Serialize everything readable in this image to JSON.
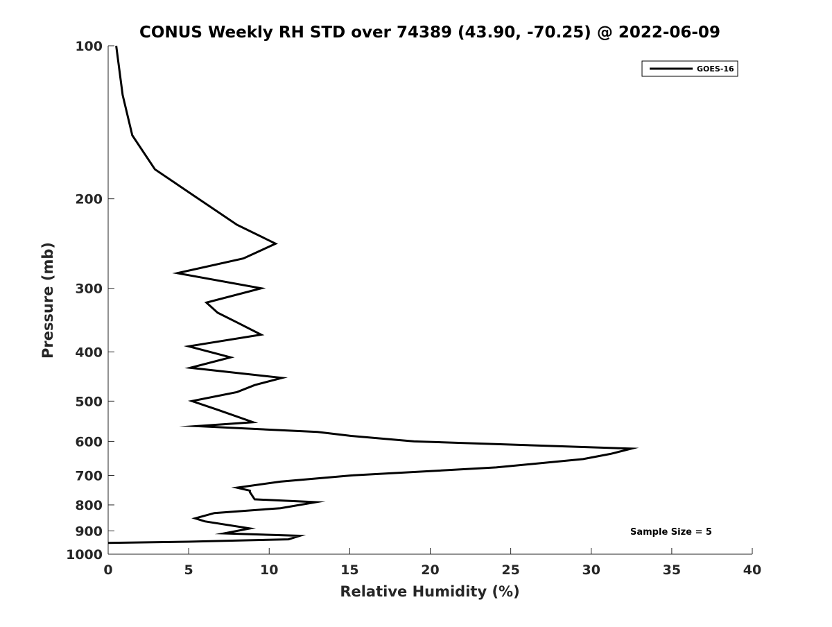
{
  "chart_data": {
    "type": "line",
    "title": "CONUS Weekly RH STD over 74389 (43.90, -70.25) @ 2022-06-09",
    "xlabel": "Relative Humidity (%)",
    "ylabel": "Pressure (mb)",
    "xlim": [
      0,
      40
    ],
    "ylim": [
      100,
      1000
    ],
    "y_scale": "log",
    "y_reversed": true,
    "x_ticks": [
      "0",
      "5",
      "10",
      "15",
      "20",
      "25",
      "30",
      "35",
      "40"
    ],
    "y_ticks": [
      "100",
      "200",
      "300",
      "400",
      "500",
      "600",
      "700",
      "800",
      "900",
      "1000"
    ],
    "grid": false,
    "legend_position": "top-right",
    "annotation": "Sample Size = 5",
    "series": [
      {
        "name": "GOES-16",
        "color": "#000000",
        "points": [
          [
            0.5,
            100
          ],
          [
            0.9,
            125
          ],
          [
            1.5,
            150
          ],
          [
            2.9,
            175
          ],
          [
            5.1,
            195
          ],
          [
            6.8,
            212
          ],
          [
            8.0,
            225
          ],
          [
            10.4,
            245
          ],
          [
            8.4,
            262
          ],
          [
            4.3,
            280
          ],
          [
            9.5,
            300
          ],
          [
            6.1,
            320
          ],
          [
            6.8,
            335
          ],
          [
            8.0,
            350
          ],
          [
            9.5,
            370
          ],
          [
            5.0,
            390
          ],
          [
            7.6,
            410
          ],
          [
            5.1,
            430
          ],
          [
            10.8,
            450
          ],
          [
            9.1,
            465
          ],
          [
            8.0,
            480
          ],
          [
            5.2,
            500
          ],
          [
            6.8,
            520
          ],
          [
            9.0,
            550
          ],
          [
            5.5,
            560
          ],
          [
            13.0,
            575
          ],
          [
            15.0,
            585
          ],
          [
            19.0,
            600
          ],
          [
            32.5,
            620
          ],
          [
            31.2,
            635
          ],
          [
            29.5,
            650
          ],
          [
            24.1,
            675
          ],
          [
            15.1,
            700
          ],
          [
            10.7,
            720
          ],
          [
            8.0,
            740
          ],
          [
            8.8,
            750
          ],
          [
            8.8,
            755
          ],
          [
            9.1,
            780
          ],
          [
            12.9,
            790
          ],
          [
            10.7,
            812
          ],
          [
            6.6,
            830
          ],
          [
            5.4,
            850
          ],
          [
            6.0,
            862
          ],
          [
            8.8,
            890
          ],
          [
            7.2,
            910
          ],
          [
            11.9,
            920
          ],
          [
            11.2,
            935
          ],
          [
            5.0,
            945
          ],
          [
            0.0,
            950
          ]
        ]
      }
    ]
  }
}
